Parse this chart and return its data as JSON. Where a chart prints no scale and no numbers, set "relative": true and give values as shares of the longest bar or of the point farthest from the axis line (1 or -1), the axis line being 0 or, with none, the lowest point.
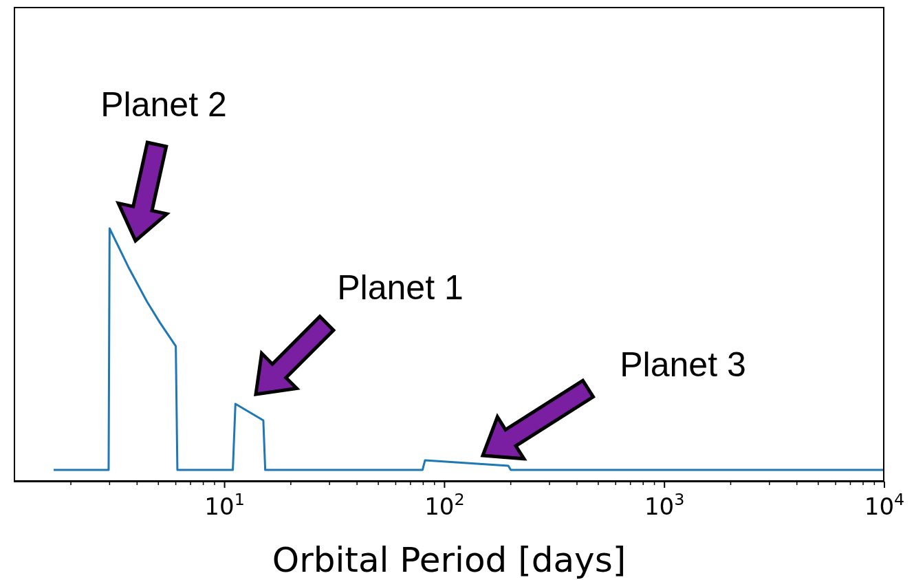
{
  "chart_data": {
    "type": "line",
    "relative": true,
    "xlabel": "Orbital Period [days]",
    "x": [
      1.67,
      2.97,
      3.0,
      3.65,
      4.43,
      5.08,
      6.0,
      6.1,
      10.9,
      11.2,
      15.0,
      15.3,
      79.4,
      81.5,
      195,
      200,
      10000
    ],
    "series": [
      {
        "color": "#1f77b4",
        "values": [
          0.046,
          0.046,
          1.0,
          0.848,
          0.712,
          0.628,
          0.535,
          0.046,
          0.046,
          0.307,
          0.242,
          0.046,
          0.046,
          0.084,
          0.0625,
          0.046,
          0.046
        ]
      }
    ],
    "xlim": [
      1.1,
      10000
    ],
    "xticks": [
      {
        "value": 2,
        "label": null
      },
      {
        "value": 3,
        "label": null
      },
      {
        "value": 4,
        "label": null
      },
      {
        "value": 5,
        "label": null
      },
      {
        "value": 6,
        "label": null
      },
      {
        "value": 7,
        "label": null
      },
      {
        "value": 8,
        "label": null
      },
      {
        "value": 9,
        "label": null
      },
      {
        "value": 10,
        "label": "10$^{1}$"
      },
      {
        "value": 20,
        "label": null
      },
      {
        "value": 30,
        "label": null
      },
      {
        "value": 40,
        "label": null
      },
      {
        "value": 50,
        "label": null
      },
      {
        "value": 60,
        "label": null
      },
      {
        "value": 70,
        "label": null
      },
      {
        "value": 80,
        "label": null
      },
      {
        "value": 90,
        "label": null
      },
      {
        "value": 100,
        "label": "10$^{2}$"
      },
      {
        "value": 200,
        "label": null
      },
      {
        "value": 300,
        "label": null
      },
      {
        "value": 400,
        "label": null
      },
      {
        "value": 500,
        "label": null
      },
      {
        "value": 600,
        "label": null
      },
      {
        "value": 700,
        "label": null
      },
      {
        "value": 800,
        "label": null
      },
      {
        "value": 900,
        "label": null
      },
      {
        "value": 1000,
        "label": "10$^{3}$"
      },
      {
        "value": 2000,
        "label": null
      },
      {
        "value": 3000,
        "label": null
      },
      {
        "value": 4000,
        "label": null
      },
      {
        "value": 5000,
        "label": null
      },
      {
        "value": 6000,
        "label": null
      },
      {
        "value": 7000,
        "label": null
      },
      {
        "value": 8000,
        "label": null
      },
      {
        "value": 9000,
        "label": null
      },
      {
        "value": 10000,
        "label": "10$^{4}$"
      }
    ],
    "log": "x",
    "annotations": [
      "Planet 2",
      "Planet 1",
      "Planet 3"
    ]
  }
}
